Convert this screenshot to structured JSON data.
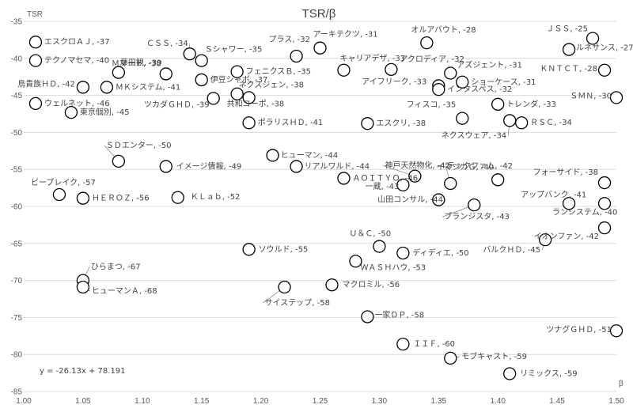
{
  "chart_data": {
    "type": "scatter",
    "title": "TSR/β",
    "ylabel": "TSR",
    "xlabel": "β",
    "xlim": [
      1.0,
      1.5
    ],
    "ylim": [
      -85,
      -35
    ],
    "xticks": [
      "1.00",
      "1.05",
      "1.10",
      "1.15",
      "1.20",
      "1.25",
      "1.30",
      "1.35",
      "1.40",
      "1.45",
      "1.50"
    ],
    "yticks": [
      "-35",
      "-40",
      "-45",
      "-50",
      "-55",
      "-60",
      "-65",
      "-70",
      "-75",
      "-80",
      "-85"
    ],
    "grid": "horizontal",
    "trendline_equation": "y = -26.13x + 78.191",
    "points": [
      {
        "label": "エスクロＡＪ, -37",
        "x": 1.01,
        "y": -37.8
      },
      {
        "label": "テクノマセマ, -40",
        "x": 1.01,
        "y": -40.3
      },
      {
        "label": "鳥貴族ＨＤ, -42",
        "x": 1.05,
        "y": -43.9
      },
      {
        "label": "ウェルネット, -46",
        "x": 1.01,
        "y": -46.1
      },
      {
        "label": "東京個別, -45",
        "x": 1.04,
        "y": -47.3
      },
      {
        "label": "Ｍマート, -38",
        "x": 1.12,
        "y": -42.1
      },
      {
        "label": "藤田観, -39",
        "x": 1.08,
        "y": -41.9
      },
      {
        "label": "ＭＫシステム, -41",
        "x": 1.07,
        "y": -43.9
      },
      {
        "label": "ＣＳＳ, -34",
        "x": 1.14,
        "y": -39.4
      },
      {
        "label": "Ｓシャワー, -35",
        "x": 1.15,
        "y": -40.3
      },
      {
        "label": "ツカダＧＨＤ, -39",
        "x": 1.16,
        "y": -45.4
      },
      {
        "label": "伊豆シャボ, -37",
        "x": 1.15,
        "y": -42.9
      },
      {
        "label": "フェニクスＢ, -35",
        "x": 1.18,
        "y": -41.8
      },
      {
        "label": "ネクスジェン, -38",
        "x": 1.18,
        "y": -44.8
      },
      {
        "label": "共和コーポ, -38",
        "x": 1.19,
        "y": -45.3
      },
      {
        "label": "プラス, -32",
        "x": 1.23,
        "y": -39.7
      },
      {
        "label": "ポラリスＨＤ, -41",
        "x": 1.19,
        "y": -48.7
      },
      {
        "label": "アーキテクツ, -31",
        "x": 1.25,
        "y": -38.6
      },
      {
        "label": "キャリアデザ, -33",
        "x": 1.27,
        "y": -41.6
      },
      {
        "label": "エスクリ, -38",
        "x": 1.29,
        "y": -48.8
      },
      {
        "label": "オルアバウト, -28",
        "x": 1.34,
        "y": -37.9
      },
      {
        "label": "アクロディア, -32",
        "x": 1.31,
        "y": -41.5
      },
      {
        "label": "アイフリーク, -33",
        "x": 1.35,
        "y": -43.7
      },
      {
        "label": "インタスペス, -32",
        "x": 1.35,
        "y": -44.2
      },
      {
        "label": "アズジェント, -31",
        "x": 1.36,
        "y": -42.0
      },
      {
        "label": "ショーケース, -31",
        "x": 1.37,
        "y": -43.2
      },
      {
        "label": "フィスコ, -35",
        "x": 1.37,
        "y": -48.1
      },
      {
        "label": "トレンダ, -33",
        "x": 1.4,
        "y": -46.2
      },
      {
        "label": "ネクスウェア, -34",
        "x": 1.41,
        "y": -48.4
      },
      {
        "label": "ＲＳＣ, -34",
        "x": 1.42,
        "y": -48.7
      },
      {
        "label": "ＪＳＳ, -25",
        "x": 1.48,
        "y": -37.3
      },
      {
        "label": "ルネサンス, -27",
        "x": 1.46,
        "y": -38.8
      },
      {
        "label": "ＫＮＴＣＴ, -28",
        "x": 1.49,
        "y": -41.6
      },
      {
        "label": "ＳＭＮ, -30",
        "x": 1.5,
        "y": -45.3
      },
      {
        "label": "ＳＤエンター, -50",
        "x": 1.08,
        "y": -53.9
      },
      {
        "label": "イメージ情報, -49",
        "x": 1.12,
        "y": -54.6
      },
      {
        "label": "ヒューマン, -44",
        "x": 1.21,
        "y": -53.1
      },
      {
        "label": "リアルワルド, -44",
        "x": 1.23,
        "y": -54.6
      },
      {
        "label": "ビーブレイク, -57",
        "x": 1.03,
        "y": -58.4
      },
      {
        "label": "ＨＥＲＯＺ, -56",
        "x": 1.05,
        "y": -58.9
      },
      {
        "label": "ＫＬａｂ, -52",
        "x": 1.13,
        "y": -58.8
      },
      {
        "label": "ＡＯＩＴＹＯ, -46",
        "x": 1.27,
        "y": -56.2
      },
      {
        "label": "神戸天然物化, -42",
        "x": 1.33,
        "y": -55.9
      },
      {
        "label": "一蔵, -43",
        "x": 1.32,
        "y": -57.1
      },
      {
        "label": "テックファム, -42",
        "x": 1.36,
        "y": -56.9
      },
      {
        "label": "イマジカＧ, -40",
        "x": 1.4,
        "y": -56.4
      },
      {
        "label": "フォーサイド, -38",
        "x": 1.49,
        "y": -56.8
      },
      {
        "label": "山田コンサル, -44",
        "x": 1.35,
        "y": -59.1
      },
      {
        "label": "ブランジスタ, -43",
        "x": 1.38,
        "y": -59.8
      },
      {
        "label": "アップバンク, -41",
        "x": 1.46,
        "y": -59.6
      },
      {
        "label": "ランシステム, -40",
        "x": 1.49,
        "y": -59.6
      },
      {
        "label": "イオンファン, -42",
        "x": 1.49,
        "y": -62.9
      },
      {
        "label": "Ｕ＆Ｃ, -50",
        "x": 1.3,
        "y": -65.4
      },
      {
        "label": "ディディエ, -50",
        "x": 1.32,
        "y": -66.3
      },
      {
        "label": "ソウルド, -55",
        "x": 1.19,
        "y": -65.8
      },
      {
        "label": "ＷＡＳＨハウ, -53",
        "x": 1.28,
        "y": -67.4
      },
      {
        "label": "バルクＨＤ, -45",
        "x": 1.44,
        "y": -64.5
      },
      {
        "label": "ひらまつ, -67",
        "x": 1.05,
        "y": -70.0
      },
      {
        "label": "ヒューマンＡ, -68",
        "x": 1.05,
        "y": -70.9
      },
      {
        "label": "サイステップ, -58",
        "x": 1.22,
        "y": -70.9
      },
      {
        "label": "マクロミル, -56",
        "x": 1.26,
        "y": -70.6
      },
      {
        "label": "一家ＤＰ, -58",
        "x": 1.29,
        "y": -74.9
      },
      {
        "label": "ツナグＧＨＤ, -51",
        "x": 1.5,
        "y": -76.8
      },
      {
        "label": "ＩＩＦ, -60",
        "x": 1.32,
        "y": -78.6
      },
      {
        "label": "モブキャスト, -59",
        "x": 1.36,
        "y": -80.5
      },
      {
        "label": "リミックス, -59",
        "x": 1.41,
        "y": -82.6
      }
    ]
  }
}
